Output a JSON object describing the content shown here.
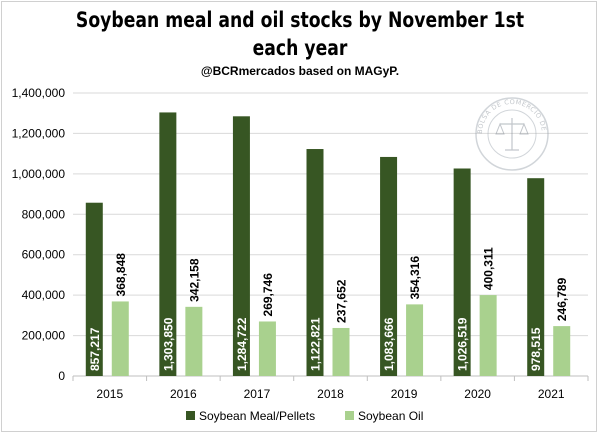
{
  "title": "Soybean meal and oil stocks by November 1st each year",
  "subtitle": "@BCRmercados based on MAGyP.",
  "watermark": "BOLSA DE COMERCIO DE ROSARIO",
  "colors": {
    "meal": "#375623",
    "oil": "#a9d18e",
    "grid": "#d9d9d9",
    "axis": "#bfbfbf"
  },
  "chart_data": {
    "type": "bar",
    "title": "Soybean meal and oil stocks by November 1st each year",
    "categories": [
      "2015",
      "2016",
      "2017",
      "2018",
      "2019",
      "2020",
      "2021"
    ],
    "series": [
      {
        "name": "Soybean Meal/Pellets",
        "values": [
          857217,
          1303850,
          1284722,
          1122821,
          1083666,
          1026519,
          978515
        ],
        "labels": [
          "857,217",
          "1,303,850",
          "1,284,722",
          "1,122,821",
          "1,083,666",
          "1,026,519",
          "978,515"
        ]
      },
      {
        "name": "Soybean Oil",
        "values": [
          368848,
          342158,
          269746,
          237652,
          354316,
          400311,
          246789
        ],
        "labels": [
          "368,848",
          "342,158",
          "269,746",
          "237,652",
          "354,316",
          "400,311",
          "246,789"
        ]
      }
    ],
    "yticks": [
      0,
      200000,
      400000,
      600000,
      800000,
      1000000,
      1200000,
      1400000
    ],
    "ytick_labels": [
      "0",
      "200,000",
      "400,000",
      "600,000",
      "800,000",
      "1,000,000",
      "1,200,000",
      "1,400,000"
    ],
    "ylim": [
      0,
      1400000
    ],
    "grid": true,
    "legend": "bottom"
  }
}
